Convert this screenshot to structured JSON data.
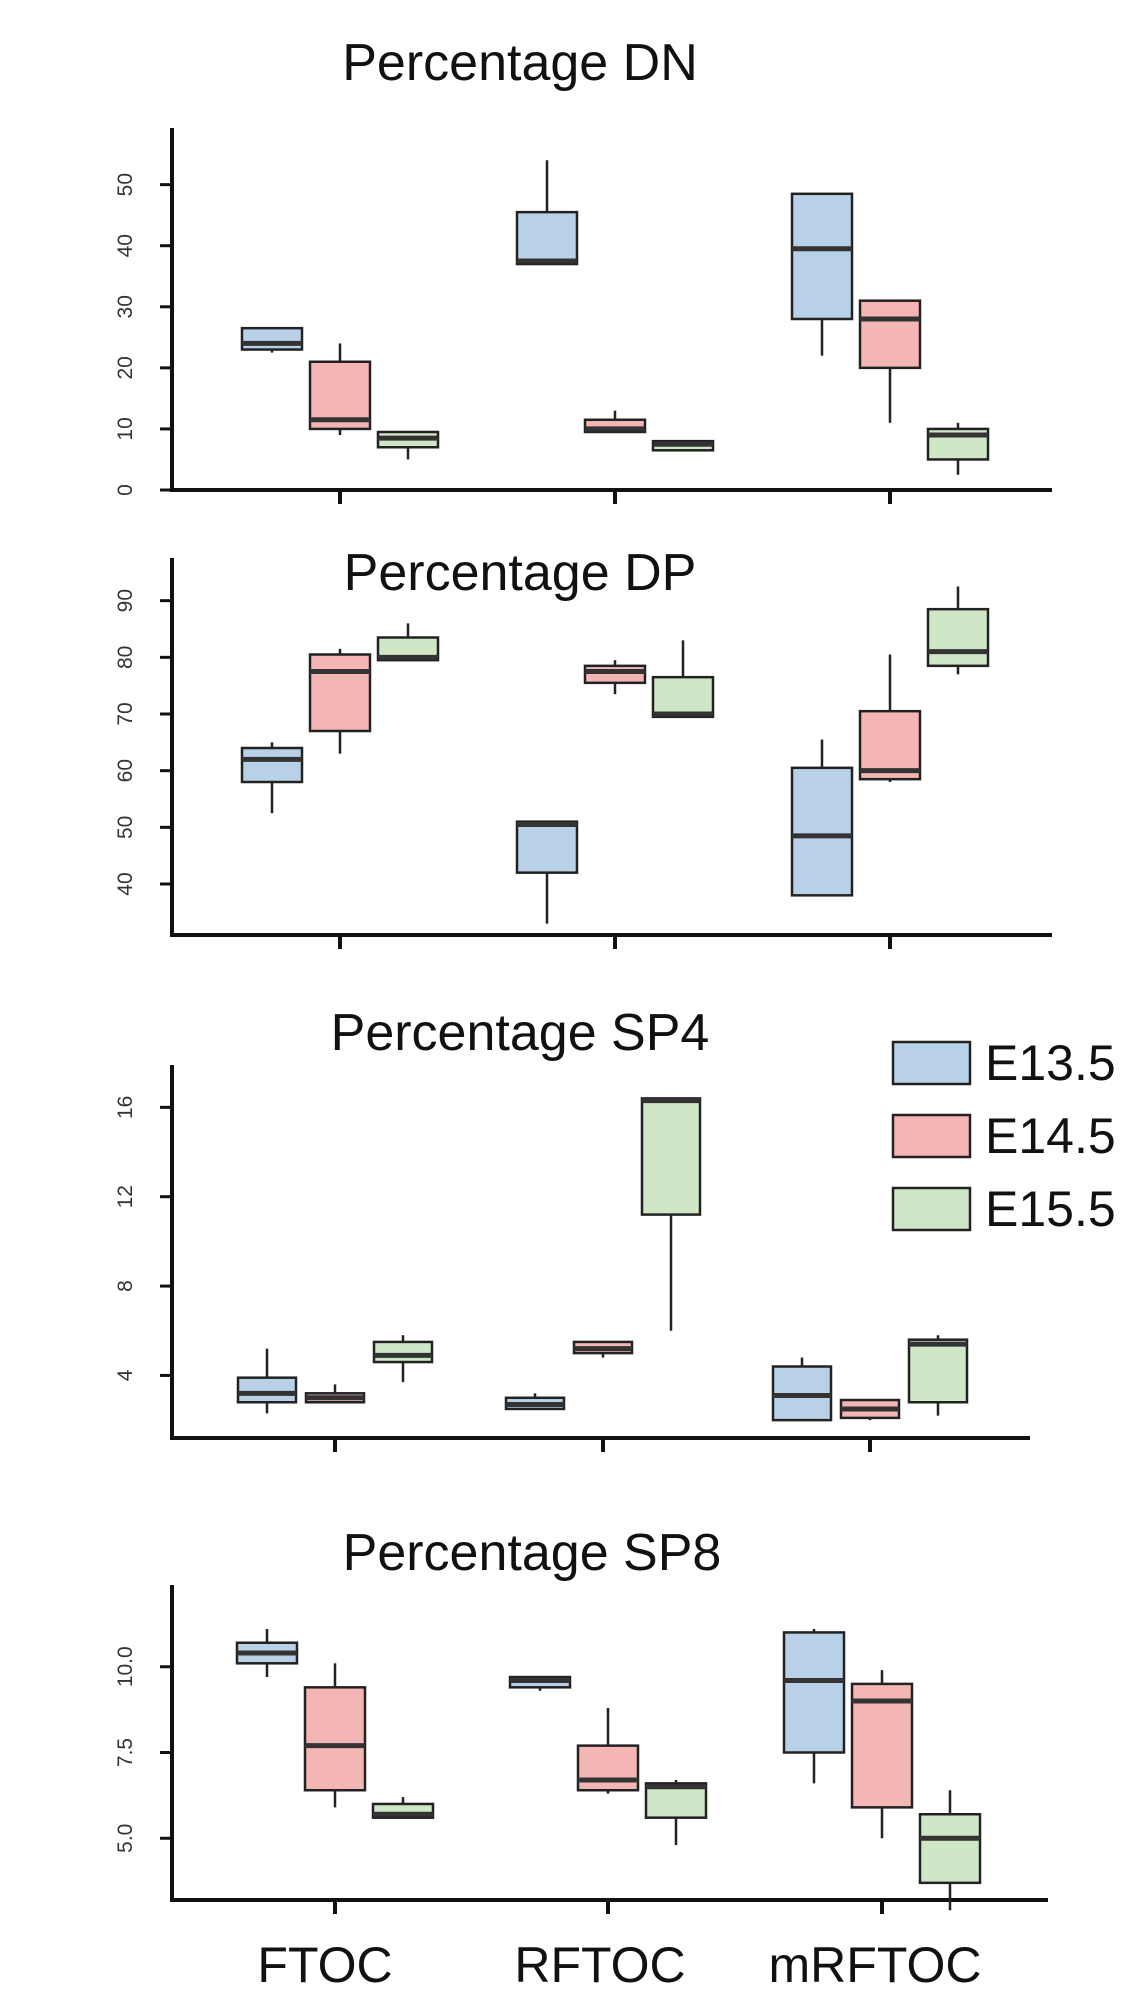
{
  "colors": {
    "E13.5": "#b8d1e6",
    "E14.5": "#f4b5b5",
    "E15.5": "#cfe6c7",
    "stroke": "#222222",
    "median": "#333333"
  },
  "legend": {
    "placement": "right, beside Percentage SP4 panel",
    "items": [
      {
        "label": "E13.5",
        "color": "#b8d1e6"
      },
      {
        "label": "E14.5",
        "color": "#f4b5b5"
      },
      {
        "label": "E15.5",
        "color": "#cfe6c7"
      }
    ]
  },
  "categories": [
    "FTOC",
    "RFTOC",
    "mRFTOC"
  ],
  "chart_data": [
    {
      "type": "box",
      "title": "Percentage DN",
      "ylim": [
        0,
        56
      ],
      "yticks": [
        0,
        10,
        20,
        30,
        40,
        50
      ],
      "categories": [
        "FTOC",
        "RFTOC",
        "mRFTOC"
      ],
      "series": [
        {
          "name": "E13.5",
          "boxes": [
            {
              "whislo": 22.5,
              "q1": 23,
              "med": 24,
              "q3": 26.5,
              "whishi": 26.5
            },
            {
              "whislo": 37,
              "q1": 37,
              "med": 37.5,
              "q3": 45.5,
              "whishi": 54
            },
            {
              "whislo": 22,
              "q1": 28,
              "med": 39.5,
              "q3": 48.5,
              "whishi": 48.5
            }
          ]
        },
        {
          "name": "E14.5",
          "boxes": [
            {
              "whislo": 9,
              "q1": 10,
              "med": 11.5,
              "q3": 21,
              "whishi": 24
            },
            {
              "whislo": 9.5,
              "q1": 9.5,
              "med": 10,
              "q3": 11.5,
              "whishi": 13
            },
            {
              "whislo": 11,
              "q1": 20,
              "med": 28,
              "q3": 31,
              "whishi": 31
            }
          ]
        },
        {
          "name": "E15.5",
          "boxes": [
            {
              "whislo": 5,
              "q1": 7,
              "med": 8.5,
              "q3": 9.5,
              "whishi": 9.5
            },
            {
              "whislo": 6.5,
              "q1": 6.5,
              "med": 7.5,
              "q3": 8,
              "whishi": 8
            },
            {
              "whislo": 2.5,
              "q1": 5,
              "med": 9,
              "q3": 10,
              "whishi": 11
            }
          ]
        }
      ]
    },
    {
      "type": "box",
      "title": "Percentage DP",
      "ylim": [
        31,
        94
      ],
      "yticks": [
        40,
        50,
        60,
        70,
        80,
        90
      ],
      "categories": [
        "FTOC",
        "RFTOC",
        "mRFTOC"
      ],
      "series": [
        {
          "name": "E13.5",
          "boxes": [
            {
              "whislo": 52.5,
              "q1": 58,
              "med": 62,
              "q3": 64,
              "whishi": 65
            },
            {
              "whislo": 33,
              "q1": 42,
              "med": 50.5,
              "q3": 51,
              "whishi": 51
            },
            {
              "whislo": 38,
              "q1": 38,
              "med": 48.5,
              "q3": 60.5,
              "whishi": 65.5
            }
          ]
        },
        {
          "name": "E14.5",
          "boxes": [
            {
              "whislo": 63,
              "q1": 67,
              "med": 77.5,
              "q3": 80.5,
              "whishi": 81.5
            },
            {
              "whislo": 73.5,
              "q1": 75.5,
              "med": 77.5,
              "q3": 78.5,
              "whishi": 79.5
            },
            {
              "whislo": 58,
              "q1": 58.5,
              "med": 60,
              "q3": 70.5,
              "whishi": 80.5
            }
          ]
        },
        {
          "name": "E15.5",
          "boxes": [
            {
              "whislo": 79.5,
              "q1": 79.5,
              "med": 80,
              "q3": 83.5,
              "whishi": 86
            },
            {
              "whislo": 69.5,
              "q1": 69.5,
              "med": 70,
              "q3": 76.5,
              "whishi": 83
            },
            {
              "whislo": 77,
              "q1": 78.5,
              "med": 81,
              "q3": 88.5,
              "whishi": 92.5
            }
          ]
        }
      ]
    },
    {
      "type": "box",
      "title": "Percentage SP4",
      "ylim": [
        1.2,
        17
      ],
      "yticks": [
        4,
        8,
        12,
        16
      ],
      "categories": [
        "FTOC",
        "RFTOC",
        "mRFTOC"
      ],
      "series": [
        {
          "name": "E13.5",
          "boxes": [
            {
              "whislo": 2.3,
              "q1": 2.8,
              "med": 3.2,
              "q3": 3.9,
              "whishi": 5.2
            },
            {
              "whislo": 2.5,
              "q1": 2.5,
              "med": 2.7,
              "q3": 3.0,
              "whishi": 3.2
            },
            {
              "whislo": 2.0,
              "q1": 2.0,
              "med": 3.1,
              "q3": 4.4,
              "whishi": 4.8
            }
          ]
        },
        {
          "name": "E14.5",
          "boxes": [
            {
              "whislo": 2.8,
              "q1": 2.8,
              "med": 3.0,
              "q3": 3.2,
              "whishi": 3.6
            },
            {
              "whislo": 4.8,
              "q1": 5.0,
              "med": 5.2,
              "q3": 5.5,
              "whishi": 5.5
            },
            {
              "whislo": 2.0,
              "q1": 2.1,
              "med": 2.5,
              "q3": 2.9,
              "whishi": 2.9
            }
          ]
        },
        {
          "name": "E15.5",
          "boxes": [
            {
              "whislo": 3.7,
              "q1": 4.6,
              "med": 4.9,
              "q3": 5.5,
              "whishi": 5.8
            },
            {
              "whislo": 6.0,
              "q1": 11.2,
              "med": 16.3,
              "q3": 16.4,
              "whishi": 16.4
            },
            {
              "whislo": 2.2,
              "q1": 2.8,
              "med": 5.4,
              "q3": 5.6,
              "whishi": 5.8
            }
          ]
        }
      ]
    },
    {
      "type": "box",
      "title": "Percentage SP8",
      "ylim": [
        3.2,
        11.8
      ],
      "yticks": [
        5.0,
        7.5,
        10.0
      ],
      "categories": [
        "FTOC",
        "RFTOC",
        "mRFTOC"
      ],
      "series": [
        {
          "name": "E13.5",
          "boxes": [
            {
              "whislo": 9.7,
              "q1": 10.1,
              "med": 10.4,
              "q3": 10.7,
              "whishi": 11.1
            },
            {
              "whislo": 9.3,
              "q1": 9.4,
              "med": 9.6,
              "q3": 9.7,
              "whishi": 9.7
            },
            {
              "whislo": 6.6,
              "q1": 7.5,
              "med": 9.6,
              "q3": 11.0,
              "whishi": 11.1
            }
          ]
        },
        {
          "name": "E14.5",
          "boxes": [
            {
              "whislo": 5.9,
              "q1": 6.4,
              "med": 7.7,
              "q3": 9.4,
              "whishi": 10.1
            },
            {
              "whislo": 6.3,
              "q1": 6.4,
              "med": 6.7,
              "q3": 7.7,
              "whishi": 8.8
            },
            {
              "whislo": 5.0,
              "q1": 5.9,
              "med": 9.0,
              "q3": 9.5,
              "whishi": 9.9
            }
          ]
        },
        {
          "name": "E15.5",
          "boxes": [
            {
              "whislo": 5.6,
              "q1": 5.6,
              "med": 5.7,
              "q3": 6.0,
              "whishi": 6.2
            },
            {
              "whislo": 4.8,
              "q1": 5.6,
              "med": 6.5,
              "q3": 6.6,
              "whishi": 6.7
            },
            {
              "whislo": 2.9,
              "q1": 3.7,
              "med": 5.0,
              "q3": 5.7,
              "whishi": 6.4
            }
          ]
        }
      ]
    }
  ]
}
